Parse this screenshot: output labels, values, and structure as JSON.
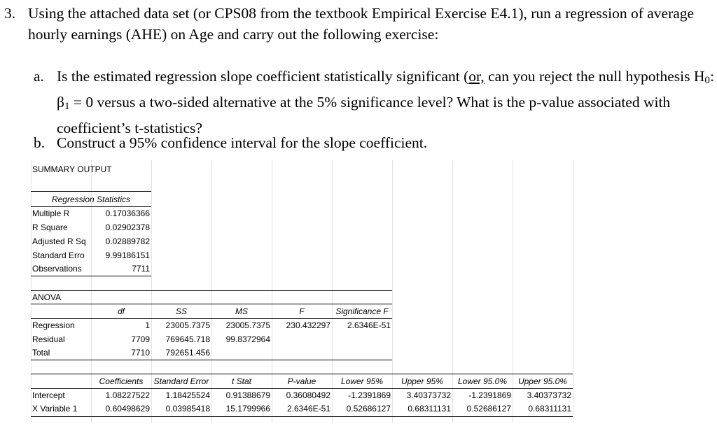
{
  "question": {
    "number": "3.",
    "text": "Using the attached data set (or CPS08 from the textbook Empirical Exercise E4.1), run a regression of average hourly earnings (AHE) on Age and carry out the following exercise:",
    "a_label": "a.",
    "a_pre": "Is the estimated regression slope coefficient statistically significant (",
    "a_or": "or,",
    "a_mid": " can you reject the null hypothesis H",
    "a_sub0": "0",
    "a_beta": ": β",
    "a_sub1": "1",
    "a_post": " = 0 versus a two-sided alternative at the 5% significance level? What is the p-value associated with coefficient’s t-statistics?",
    "b_label": "b.",
    "b_text": "Construct a 95% confidence interval for the slope coefficient."
  },
  "output": {
    "title": "SUMMARY OUTPUT",
    "reg_stats": {
      "header": "Regression Statistics",
      "rows": [
        {
          "label": "Multiple R",
          "value": "0.17036366"
        },
        {
          "label": "R Square",
          "value": "0.02902378"
        },
        {
          "label": "Adjusted R Sq",
          "value": "0.02889782"
        },
        {
          "label": "Standard Erro",
          "value": "9.99186151"
        },
        {
          "label": "Observations",
          "value": "7711"
        }
      ]
    },
    "anova": {
      "title": "ANOVA",
      "headers": [
        "df",
        "SS",
        "MS",
        "F",
        "Significance F"
      ],
      "rows": [
        {
          "label": "Regression",
          "df": "1",
          "ss": "23005.7375",
          "ms": "23005.7375",
          "f": "230.432297",
          "sig": "2.6346E-51"
        },
        {
          "label": "Residual",
          "df": "7709",
          "ss": "769645.718",
          "ms": "99.8372964",
          "f": "",
          "sig": ""
        },
        {
          "label": "Total",
          "df": "7710",
          "ss": "792651.456",
          "ms": "",
          "f": "",
          "sig": ""
        }
      ]
    },
    "coef": {
      "headers": [
        "Coefficients",
        "Standard Error",
        "t Stat",
        "P-value",
        "Lower 95%",
        "Upper 95%",
        "Lower 95.0%",
        "Upper 95.0%"
      ],
      "rows": [
        {
          "label": "Intercept",
          "values": [
            "1.08227522",
            "1.18425524",
            "0.91388679",
            "0.36080492",
            "-1.2391869",
            "3.40373732",
            "-1.2391869",
            "3.40373732"
          ]
        },
        {
          "label": "X Variable 1",
          "values": [
            "0.60498629",
            "0.03985418",
            "15.1799966",
            "2.6346E-51",
            "0.52686127",
            "0.68311131",
            "0.52686127",
            "0.68311131"
          ]
        }
      ]
    }
  }
}
